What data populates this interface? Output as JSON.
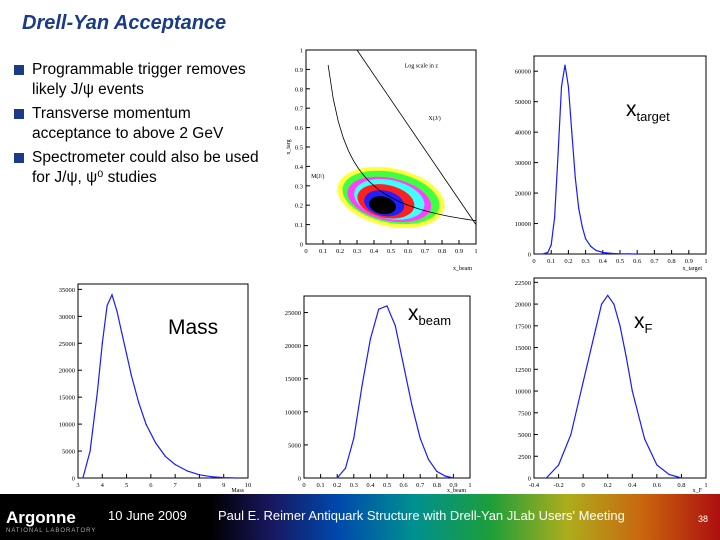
{
  "slide": {
    "title": "Drell-Yan Acceptance",
    "bullets": [
      "Programmable trigger removes likely J/ψ events",
      "Transverse momentum acceptance to above 2 GeV",
      "Spectrometer could also be used for J/ψ, ψ⁰ studies"
    ]
  },
  "labels": {
    "mass": "Mass",
    "xbeam_main": "x",
    "xbeam_sub": "beam",
    "xtarget_main": "x",
    "xtarget_sub": "target",
    "xf_main": "x",
    "xf_sub": "F"
  },
  "footer": {
    "logo": "Argonne",
    "logo_sub": "NATIONAL LABORATORY",
    "date": "10 June 2009",
    "talk": "Paul E. Reimer  Antiquark Structure with Drell-Yan JLab Users' Meeting",
    "page": "38"
  },
  "chart_data": [
    {
      "id": "scatter",
      "type": "scatter",
      "title": "",
      "xlabel": "x_beam",
      "ylabel": "x_targ",
      "xlim": [
        0,
        1
      ],
      "ylim": [
        0,
        1
      ],
      "xticks": [
        "0",
        "0.1",
        "0.2",
        "0.3",
        "0.4",
        "0.5",
        "0.6",
        "0.7",
        "0.8",
        "0.9",
        "1"
      ],
      "yticks": [
        "0",
        "0.1",
        "0.2",
        "0.3",
        "0.4",
        "0.5",
        "0.6",
        "0.7",
        "0.8",
        "0.9",
        "1"
      ],
      "annotations": [
        "Log scale in z",
        "X(J/)",
        "M(J/)"
      ],
      "contours": [
        {
          "color": "#ffff40",
          "cx": 0.5,
          "cy": 0.24,
          "rx": 0.32,
          "ry": 0.15
        },
        {
          "color": "#40ff40",
          "cx": 0.5,
          "cy": 0.24,
          "rx": 0.29,
          "ry": 0.13
        },
        {
          "color": "#ff40ff",
          "cx": 0.49,
          "cy": 0.23,
          "rx": 0.25,
          "ry": 0.11
        },
        {
          "color": "#40ffff",
          "cx": 0.49,
          "cy": 0.23,
          "rx": 0.21,
          "ry": 0.1
        },
        {
          "color": "#ff2020",
          "cx": 0.47,
          "cy": 0.22,
          "rx": 0.17,
          "ry": 0.085
        },
        {
          "color": "#2020ff",
          "cx": 0.46,
          "cy": 0.21,
          "rx": 0.12,
          "ry": 0.065
        },
        {
          "color": "#000000",
          "cx": 0.45,
          "cy": 0.2,
          "rx": 0.08,
          "ry": 0.045
        }
      ]
    },
    {
      "id": "xtarget",
      "type": "line",
      "xlabel": "x_target",
      "xlim": [
        0,
        1
      ],
      "ylim": [
        0,
        65000
      ],
      "xticks": [
        "0",
        "0.1",
        "0.2",
        "0.3",
        "0.4",
        "0.5",
        "0.6",
        "0.7",
        "0.8",
        "0.9",
        "1"
      ],
      "yticks": [
        "0",
        "10000",
        "20000",
        "30000",
        "40000",
        "50000",
        "60000"
      ],
      "x": [
        0.05,
        0.08,
        0.1,
        0.12,
        0.14,
        0.16,
        0.18,
        0.2,
        0.22,
        0.24,
        0.26,
        0.28,
        0.3,
        0.33,
        0.36,
        0.4,
        0.45,
        0.5,
        0.55,
        0.6
      ],
      "values": [
        0,
        500,
        3000,
        12000,
        33000,
        55000,
        62000,
        55000,
        40000,
        25000,
        15000,
        9000,
        5000,
        2500,
        1200,
        500,
        200,
        80,
        30,
        0
      ]
    },
    {
      "id": "mass",
      "type": "line",
      "xlabel": "Mass",
      "xlim": [
        3,
        10
      ],
      "ylim": [
        0,
        36000
      ],
      "xticks": [
        "3",
        "4",
        "5",
        "6",
        "7",
        "8",
        "9",
        "10"
      ],
      "yticks": [
        "0",
        "5000",
        "10000",
        "15000",
        "20000",
        "25000",
        "30000",
        "35000"
      ],
      "x": [
        3.2,
        3.5,
        3.8,
        4.0,
        4.2,
        4.4,
        4.6,
        4.8,
        5.0,
        5.2,
        5.5,
        5.8,
        6.2,
        6.6,
        7.0,
        7.5,
        8.0,
        8.5,
        9.0,
        9.5
      ],
      "values": [
        0,
        5000,
        16000,
        25000,
        32000,
        34000,
        31000,
        27000,
        23000,
        19000,
        14000,
        10000,
        6500,
        4000,
        2500,
        1300,
        600,
        250,
        80,
        0
      ]
    },
    {
      "id": "xbeam",
      "type": "line",
      "xlabel": "x_beam",
      "xlim": [
        0,
        1
      ],
      "ylim": [
        0,
        27500
      ],
      "xticks": [
        "0",
        "0.1",
        "0.2",
        "0.3",
        "0.4",
        "0.5",
        "0.6",
        "0.7",
        "0.8",
        "0.9",
        "1"
      ],
      "yticks": [
        "0",
        "5000",
        "10000",
        "15000",
        "20000",
        "25000"
      ],
      "x": [
        0.2,
        0.25,
        0.3,
        0.35,
        0.4,
        0.45,
        0.5,
        0.55,
        0.6,
        0.65,
        0.7,
        0.75,
        0.8,
        0.85,
        0.9
      ],
      "values": [
        0,
        1500,
        6000,
        14000,
        21000,
        25500,
        26000,
        23000,
        17000,
        11000,
        6000,
        2800,
        1000,
        300,
        0
      ]
    },
    {
      "id": "xf",
      "type": "line",
      "xlabel": "x_F",
      "xlim": [
        -0.4,
        1
      ],
      "ylim": [
        0,
        23000
      ],
      "xticks": [
        "-0.4",
        "-0.2",
        "0",
        "0.2",
        "0.4",
        "0.6",
        "0.8",
        "1"
      ],
      "yticks": [
        "0",
        "2500",
        "5000",
        "7500",
        "10000",
        "12500",
        "15000",
        "17500",
        "20000",
        "22500"
      ],
      "x": [
        -0.3,
        -0.2,
        -0.1,
        0.0,
        0.1,
        0.15,
        0.2,
        0.25,
        0.3,
        0.35,
        0.4,
        0.5,
        0.6,
        0.7,
        0.8
      ],
      "values": [
        0,
        1500,
        5000,
        11000,
        17000,
        20000,
        21000,
        20000,
        17500,
        14000,
        10000,
        4500,
        1500,
        400,
        0
      ]
    }
  ]
}
